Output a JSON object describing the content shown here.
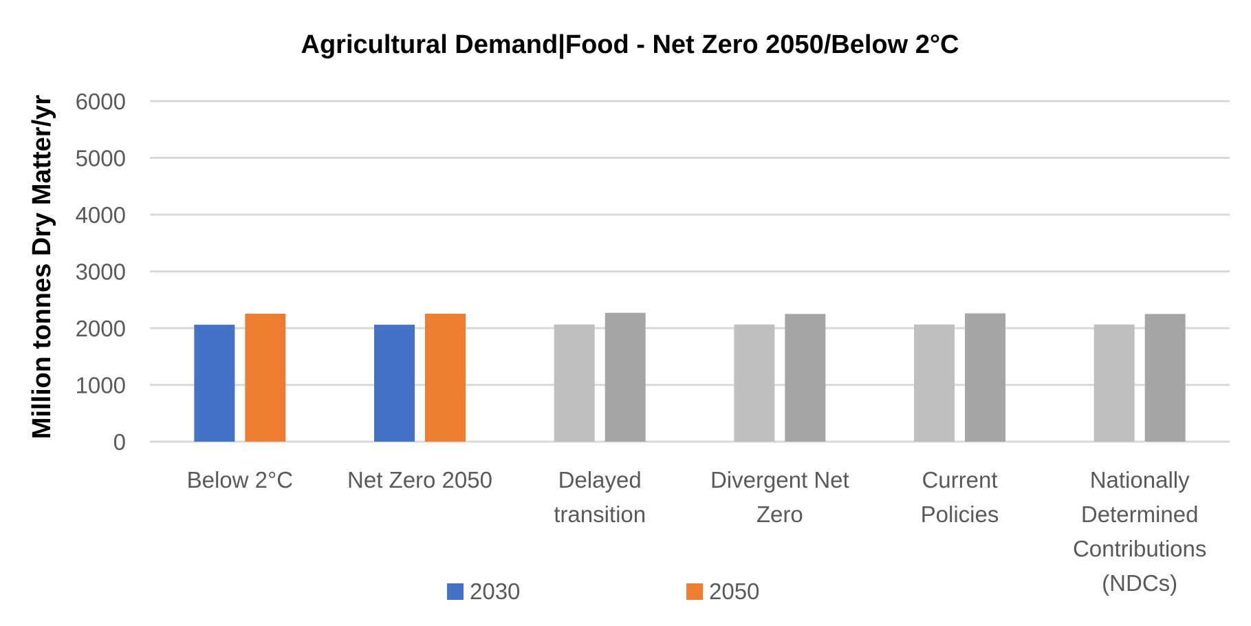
{
  "chart_data": {
    "type": "bar",
    "title": "Agricultural Demand|Food - Net Zero 2050/Below 2°C",
    "xlabel": "",
    "ylabel": "Million tonnes Dry Matter/yr",
    "ylim": [
      0,
      6000
    ],
    "yticks": [
      0,
      1000,
      2000,
      3000,
      4000,
      5000,
      6000
    ],
    "grid": true,
    "legend_position": "bottom",
    "categories": [
      [
        "Below 2°C"
      ],
      [
        "Net Zero 2050"
      ],
      [
        "Delayed",
        "transition"
      ],
      [
        "Divergent Net",
        "Zero"
      ],
      [
        "Current",
        "Policies"
      ],
      [
        "Nationally",
        "Determined",
        "Contributions",
        "(NDCs)"
      ]
    ],
    "series": [
      {
        "name": "2030",
        "values": [
          2060,
          2060,
          2065,
          2065,
          2065,
          2065
        ],
        "colors": [
          "#4472C4",
          "#4472C4",
          "#BFBFBF",
          "#BFBFBF",
          "#BFBFBF",
          "#BFBFBF"
        ]
      },
      {
        "name": "2050",
        "values": [
          2255,
          2255,
          2270,
          2250,
          2260,
          2250
        ],
        "colors": [
          "#ED7D31",
          "#ED7D31",
          "#A5A5A5",
          "#A5A5A5",
          "#A5A5A5",
          "#A5A5A5"
        ]
      }
    ],
    "legend": [
      {
        "label": "2030",
        "color": "#4472C4"
      },
      {
        "label": "2050",
        "color": "#ED7D31"
      }
    ],
    "gridline_color": "#D9D9D9"
  }
}
